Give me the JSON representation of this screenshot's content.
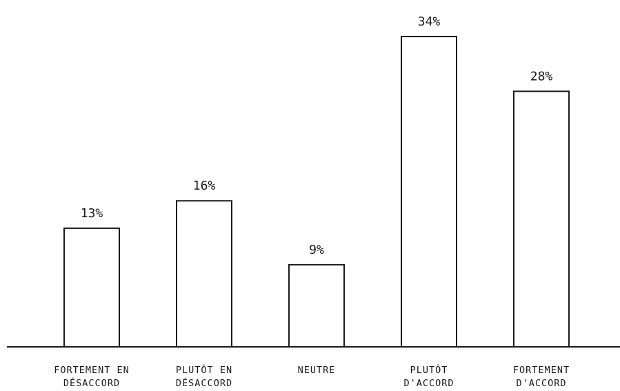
{
  "chart_data": {
    "type": "bar",
    "categories": [
      [
        "FORTEMENT EN",
        "DÉSACCORD"
      ],
      [
        "PLUTÔT EN",
        "DÉSACCORD"
      ],
      [
        "NEUTRE"
      ],
      [
        "PLUTÔT",
        "D'ACCORD"
      ],
      [
        "FORTEMENT",
        "D'ACCORD"
      ]
    ],
    "values": [
      13,
      16,
      9,
      34,
      28
    ],
    "value_labels": [
      "13%",
      "16%",
      "9%",
      "34%",
      "28%"
    ],
    "ylim": [
      0,
      34
    ],
    "grid": false,
    "bar_fill": "#ffffff",
    "bar_stroke": "#1a1a1a"
  }
}
